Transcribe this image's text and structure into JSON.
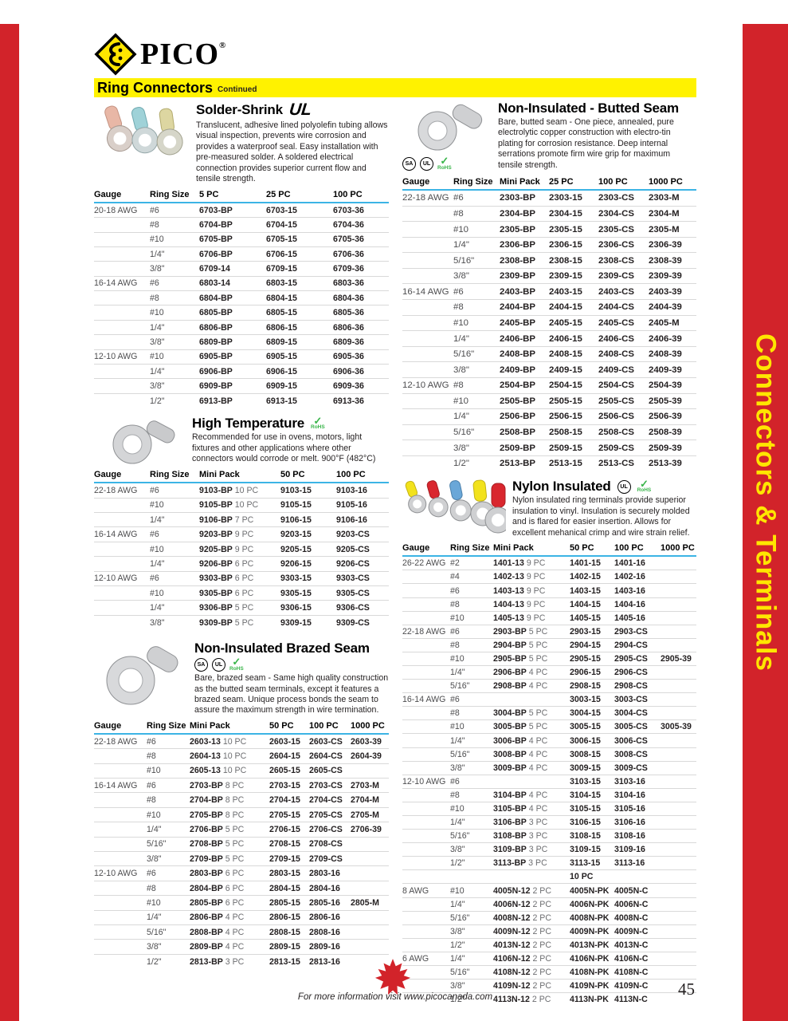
{
  "page": {
    "brand": "PICO",
    "brand_reg": "®",
    "banner": {
      "title": "Ring Connectors",
      "subtitle": "Continued"
    },
    "side_tab": "Connectors & Terminals",
    "footer": {
      "info": "For more information visit www.picocanada.com",
      "page_number": "45"
    },
    "colors": {
      "red": "#d2232a",
      "yellow": "#fff200",
      "header_underline": "#3cb4e5",
      "rohs_green": "#39b54a"
    }
  },
  "icons": {
    "ul": "UL",
    "csa": "SA",
    "rohs_check": "✓",
    "rohs_label": "RoHS"
  },
  "sections": {
    "solder_shrink": {
      "title": "Solder-Shrink",
      "certs": [
        "ul-recognized"
      ],
      "description": "Translucent, adhesive lined polyolefin tubing allows visual inspection, prevents wire corrosion and provides a waterproof seal. Easy installation with pre-measured solder. A soldered electrical connection provides superior current flow and tensile strength.",
      "columns": [
        "Gauge",
        "Ring Size",
        "5 PC",
        "25 PC",
        "100 PC"
      ],
      "rows": [
        [
          "20-18 AWG",
          "#6",
          "6703-BP",
          "6703-15",
          "6703-36"
        ],
        [
          "",
          "#8",
          "6704-BP",
          "6704-15",
          "6704-36"
        ],
        [
          "",
          "#10",
          "6705-BP",
          "6705-15",
          "6705-36"
        ],
        [
          "",
          "1/4\"",
          "6706-BP",
          "6706-15",
          "6706-36"
        ],
        [
          "",
          "3/8\"",
          "6709-14",
          "6709-15",
          "6709-36"
        ],
        [
          "16-14 AWG",
          "#6",
          "6803-14",
          "6803-15",
          "6803-36"
        ],
        [
          "",
          "#8",
          "6804-BP",
          "6804-15",
          "6804-36"
        ],
        [
          "",
          "#10",
          "6805-BP",
          "6805-15",
          "6805-36"
        ],
        [
          "",
          "1/4\"",
          "6806-BP",
          "6806-15",
          "6806-36"
        ],
        [
          "",
          "3/8\"",
          "6809-BP",
          "6809-15",
          "6809-36"
        ],
        [
          "12-10 AWG",
          "#10",
          "6905-BP",
          "6905-15",
          "6905-36"
        ],
        [
          "",
          "1/4\"",
          "6906-BP",
          "6906-15",
          "6906-36"
        ],
        [
          "",
          "3/8\"",
          "6909-BP",
          "6909-15",
          "6909-36"
        ],
        [
          "",
          "1/2\"",
          "6913-BP",
          "6913-15",
          "6913-36"
        ]
      ]
    },
    "high_temperature": {
      "title": "High Temperature",
      "certs": [
        "rohs"
      ],
      "description": "Recommended for use in ovens, motors, light fixtures and other applications where other connectors would corrode or melt. 900°F (482°C)",
      "columns": [
        "Gauge",
        "Ring Size",
        "Mini Pack",
        "50 PC",
        "100 PC"
      ],
      "rows": [
        [
          "22-18 AWG",
          "#6",
          "9103-BP 10 PC",
          "9103-15",
          "9103-16"
        ],
        [
          "",
          "#10",
          "9105-BP 10 PC",
          "9105-15",
          "9105-16"
        ],
        [
          "",
          "1/4\"",
          "9106-BP 7 PC",
          "9106-15",
          "9106-16"
        ],
        [
          "16-14 AWG",
          "#6",
          "9203-BP 9 PC",
          "9203-15",
          "9203-CS"
        ],
        [
          "",
          "#10",
          "9205-BP 9 PC",
          "9205-15",
          "9205-CS"
        ],
        [
          "",
          "1/4\"",
          "9206-BP 6 PC",
          "9206-15",
          "9206-CS"
        ],
        [
          "12-10 AWG",
          "#6",
          "9303-BP 6 PC",
          "9303-15",
          "9303-CS"
        ],
        [
          "",
          "#10",
          "9305-BP 6 PC",
          "9305-15",
          "9305-CS"
        ],
        [
          "",
          "1/4\"",
          "9306-BP 5 PC",
          "9306-15",
          "9306-CS"
        ],
        [
          "",
          "3/8\"",
          "9309-BP 5 PC",
          "9309-15",
          "9309-CS"
        ]
      ]
    },
    "brazed_seam": {
      "title": "Non-Insulated Brazed Seam",
      "certs": [
        "csa",
        "ul",
        "rohs"
      ],
      "description": "Bare, brazed seam - Same high quality construction as the butted seam terminals, except it features a brazed seam. Unique process bonds the seam to assure the maximum strength in wire termination.",
      "columns": [
        "Gauge",
        "Ring Size",
        "Mini Pack",
        "50 PC",
        "100 PC",
        "1000 PC"
      ],
      "rows": [
        [
          "22-18 AWG",
          "#6",
          "2603-13 10 PC",
          "2603-15",
          "2603-CS",
          "2603-39"
        ],
        [
          "",
          "#8",
          "2604-13 10 PC",
          "2604-15",
          "2604-CS",
          "2604-39"
        ],
        [
          "",
          "#10",
          "2605-13 10 PC",
          "2605-15",
          "2605-CS",
          ""
        ],
        [
          "16-14 AWG",
          "#6",
          "2703-BP 8 PC",
          "2703-15",
          "2703-CS",
          "2703-M"
        ],
        [
          "",
          "#8",
          "2704-BP 8 PC",
          "2704-15",
          "2704-CS",
          "2704-M"
        ],
        [
          "",
          "#10",
          "2705-BP 8 PC",
          "2705-15",
          "2705-CS",
          "2705-M"
        ],
        [
          "",
          "1/4\"",
          "2706-BP 5 PC",
          "2706-15",
          "2706-CS",
          "2706-39"
        ],
        [
          "",
          "5/16\"",
          "2708-BP 5 PC",
          "2708-15",
          "2708-CS",
          ""
        ],
        [
          "",
          "3/8\"",
          "2709-BP 5 PC",
          "2709-15",
          "2709-CS",
          ""
        ],
        [
          "12-10 AWG",
          "#6",
          "2803-BP 6 PC",
          "2803-15",
          "2803-16",
          ""
        ],
        [
          "",
          "#8",
          "2804-BP 6 PC",
          "2804-15",
          "2804-16",
          ""
        ],
        [
          "",
          "#10",
          "2805-BP 6 PC",
          "2805-15",
          "2805-16",
          "2805-M"
        ],
        [
          "",
          "1/4\"",
          "2806-BP 4 PC",
          "2806-15",
          "2806-16",
          ""
        ],
        [
          "",
          "5/16\"",
          "2808-BP 4 PC",
          "2808-15",
          "2808-16",
          ""
        ],
        [
          "",
          "3/8\"",
          "2809-BP 4 PC",
          "2809-15",
          "2809-16",
          ""
        ],
        [
          "",
          "1/2\"",
          "2813-BP 3 PC",
          "2813-15",
          "2813-16",
          ""
        ]
      ]
    },
    "butted_seam": {
      "title": "Non-Insulated - Butted Seam",
      "certs": [
        "csa",
        "ul",
        "rohs"
      ],
      "description": "Bare, butted seam - One piece, annealed, pure electrolytic copper construction with electro-tin plating for corrosion resistance. Deep internal serrations promote firm wire grip for maximum tensile strength.",
      "columns": [
        "Gauge",
        "Ring Size",
        "Mini Pack",
        "25 PC",
        "100 PC",
        "1000 PC"
      ],
      "rows": [
        [
          "22-18 AWG",
          "#6",
          "2303-BP",
          "2303-15",
          "2303-CS",
          "2303-M"
        ],
        [
          "",
          "#8",
          "2304-BP",
          "2304-15",
          "2304-CS",
          "2304-M"
        ],
        [
          "",
          "#10",
          "2305-BP",
          "2305-15",
          "2305-CS",
          "2305-M"
        ],
        [
          "",
          "1/4\"",
          "2306-BP",
          "2306-15",
          "2306-CS",
          "2306-39"
        ],
        [
          "",
          "5/16\"",
          "2308-BP",
          "2308-15",
          "2308-CS",
          "2308-39"
        ],
        [
          "",
          "3/8\"",
          "2309-BP",
          "2309-15",
          "2309-CS",
          "2309-39"
        ],
        [
          "16-14 AWG",
          "#6",
          "2403-BP",
          "2403-15",
          "2403-CS",
          "2403-39"
        ],
        [
          "",
          "#8",
          "2404-BP",
          "2404-15",
          "2404-CS",
          "2404-39"
        ],
        [
          "",
          "#10",
          "2405-BP",
          "2405-15",
          "2405-CS",
          "2405-M"
        ],
        [
          "",
          "1/4\"",
          "2406-BP",
          "2406-15",
          "2406-CS",
          "2406-39"
        ],
        [
          "",
          "5/16\"",
          "2408-BP",
          "2408-15",
          "2408-CS",
          "2408-39"
        ],
        [
          "",
          "3/8\"",
          "2409-BP",
          "2409-15",
          "2409-CS",
          "2409-39"
        ],
        [
          "12-10 AWG",
          "#8",
          "2504-BP",
          "2504-15",
          "2504-CS",
          "2504-39"
        ],
        [
          "",
          "#10",
          "2505-BP",
          "2505-15",
          "2505-CS",
          "2505-39"
        ],
        [
          "",
          "1/4\"",
          "2506-BP",
          "2506-15",
          "2506-CS",
          "2506-39"
        ],
        [
          "",
          "5/16\"",
          "2508-BP",
          "2508-15",
          "2508-CS",
          "2508-39"
        ],
        [
          "",
          "3/8\"",
          "2509-BP",
          "2509-15",
          "2509-CS",
          "2509-39"
        ],
        [
          "",
          "1/2\"",
          "2513-BP",
          "2513-15",
          "2513-CS",
          "2513-39"
        ]
      ]
    },
    "nylon_insulated": {
      "title": "Nylon Insulated",
      "certs": [
        "ul",
        "rohs"
      ],
      "description": "Nylon insulated ring terminals provide superior insulation to vinyl. Insulation is securely molded and is flared for easier insertion. Allows for excellent mehanical crimp and wire strain relief.",
      "columns": [
        "Gauge",
        "Ring Size",
        "Mini Pack",
        "50 PC",
        "100 PC",
        "1000 PC"
      ],
      "rows": [
        [
          "26-22 AWG",
          "#2",
          "1401-13 9 PC",
          "1401-15",
          "1401-16",
          ""
        ],
        [
          "",
          "#4",
          "1402-13 9 PC",
          "1402-15",
          "1402-16",
          ""
        ],
        [
          "",
          "#6",
          "1403-13 9 PC",
          "1403-15",
          "1403-16",
          ""
        ],
        [
          "",
          "#8",
          "1404-13 9 PC",
          "1404-15",
          "1404-16",
          ""
        ],
        [
          "",
          "#10",
          "1405-13 9 PC",
          "1405-15",
          "1405-16",
          ""
        ],
        [
          "22-18 AWG",
          "#6",
          "2903-BP 5 PC",
          "2903-15",
          "2903-CS",
          ""
        ],
        [
          "",
          "#8",
          "2904-BP 5 PC",
          "2904-15",
          "2904-CS",
          ""
        ],
        [
          "",
          "#10",
          "2905-BP 5 PC",
          "2905-15",
          "2905-CS",
          "2905-39"
        ],
        [
          "",
          "1/4\"",
          "2906-BP 4 PC",
          "2906-15",
          "2906-CS",
          ""
        ],
        [
          "",
          "5/16\"",
          "2908-BP 4 PC",
          "2908-15",
          "2908-CS",
          ""
        ],
        [
          "16-14 AWG",
          "#6",
          "",
          "3003-15",
          "3003-CS",
          ""
        ],
        [
          "",
          "#8",
          "3004-BP 5 PC",
          "3004-15",
          "3004-CS",
          ""
        ],
        [
          "",
          "#10",
          "3005-BP 5 PC",
          "3005-15",
          "3005-CS",
          "3005-39"
        ],
        [
          "",
          "1/4\"",
          "3006-BP 4 PC",
          "3006-15",
          "3006-CS",
          ""
        ],
        [
          "",
          "5/16\"",
          "3008-BP 4 PC",
          "3008-15",
          "3008-CS",
          ""
        ],
        [
          "",
          "3/8\"",
          "3009-BP 4 PC",
          "3009-15",
          "3009-CS",
          ""
        ],
        [
          "12-10 AWG",
          "#6",
          "",
          "3103-15",
          "3103-16",
          ""
        ],
        [
          "",
          "#8",
          "3104-BP 4 PC",
          "3104-15",
          "3104-16",
          ""
        ],
        [
          "",
          "#10",
          "3105-BP 4 PC",
          "3105-15",
          "3105-16",
          ""
        ],
        [
          "",
          "1/4\"",
          "3106-BP 3 PC",
          "3106-15",
          "3106-16",
          ""
        ],
        [
          "",
          "5/16\"",
          "3108-BP 3 PC",
          "3108-15",
          "3108-16",
          ""
        ],
        [
          "",
          "3/8\"",
          "3109-BP 3 PC",
          "3109-15",
          "3109-16",
          ""
        ],
        [
          "",
          "1/2\"",
          "3113-BP 3 PC",
          "3113-15",
          "3113-16",
          ""
        ],
        [
          "",
          "",
          "",
          "10 PC",
          "",
          ""
        ],
        [
          "8 AWG",
          "#10",
          "4005N-12 2 PC",
          "4005N-PK",
          "4005N-C",
          ""
        ],
        [
          "",
          "1/4\"",
          "4006N-12 2 PC",
          "4006N-PK",
          "4006N-C",
          ""
        ],
        [
          "",
          "5/16\"",
          "4008N-12 2 PC",
          "4008N-PK",
          "4008N-C",
          ""
        ],
        [
          "",
          "3/8\"",
          "4009N-12 2 PC",
          "4009N-PK",
          "4009N-C",
          ""
        ],
        [
          "",
          "1/2\"",
          "4013N-12 2 PC",
          "4013N-PK",
          "4013N-C",
          ""
        ],
        [
          "6 AWG",
          "1/4\"",
          "4106N-12 2 PC",
          "4106N-PK",
          "4106N-C",
          ""
        ],
        [
          "",
          "5/16\"",
          "4108N-12 2 PC",
          "4108N-PK",
          "4108N-C",
          ""
        ],
        [
          "",
          "3/8\"",
          "4109N-12 2 PC",
          "4109N-PK",
          "4109N-C",
          ""
        ],
        [
          "",
          "1/2\"",
          "4113N-12 2 PC",
          "4113N-PK",
          "4113N-C",
          ""
        ]
      ]
    }
  }
}
